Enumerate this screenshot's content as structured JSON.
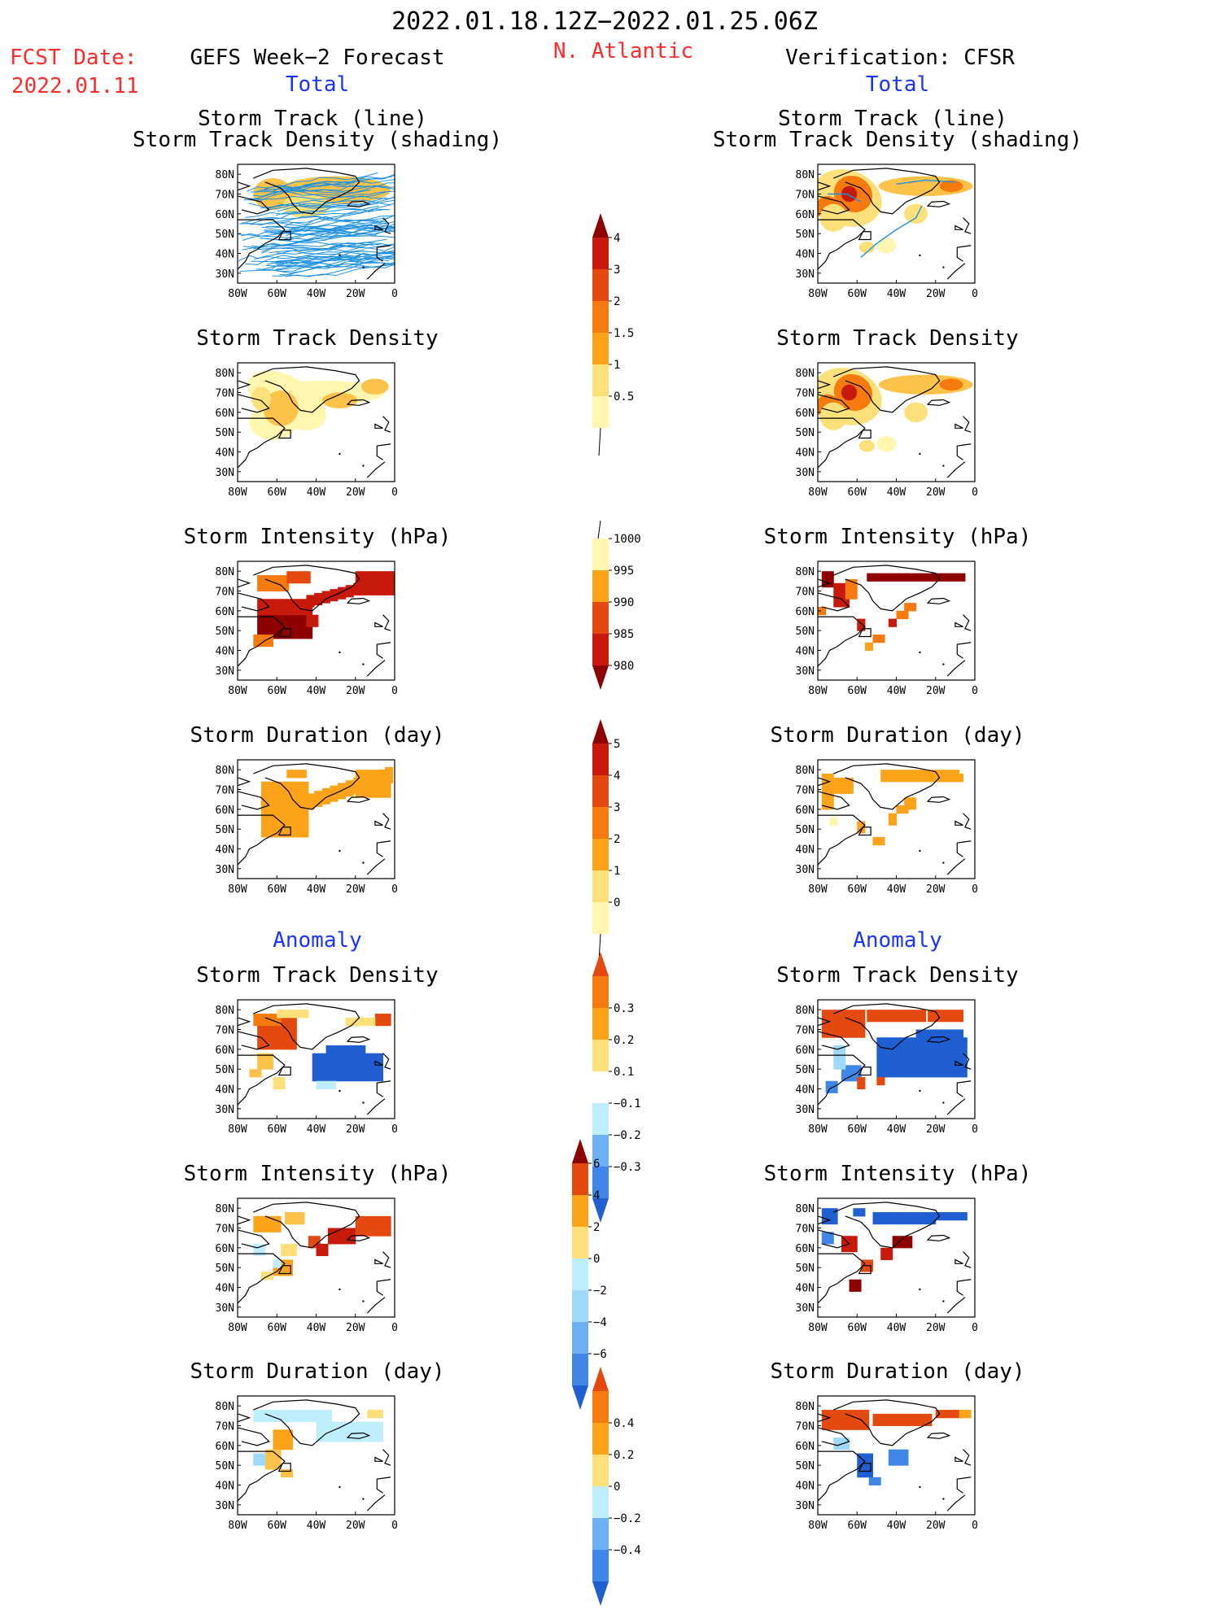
{
  "header": {
    "period": "2022.01.18.12Z−2022.01.25.06Z",
    "fcst_label": "FCST Date:",
    "fcst_date": "2022.01.11",
    "left_model": "GEFS Week−2 Forecast",
    "region": "N. Atlantic",
    "right_model": "Verification: CFSR",
    "total_left": "Total",
    "total_right": "Total",
    "anomaly_left": "Anomaly",
    "anomaly_right": "Anomaly"
  },
  "panels": {
    "track_line": "Storm Track (line)",
    "track_shading": "Storm Track Density (shading)",
    "density": "Storm Track Density",
    "intensity": "Storm Intensity (hPa)",
    "duration": "Storm Duration (day)"
  },
  "axes": {
    "lat_labels": [
      "80N",
      "70N",
      "60N",
      "50N",
      "40N",
      "30N"
    ],
    "lon_labels": [
      "80W",
      "60W",
      "40W",
      "20W",
      "0"
    ]
  },
  "colorbars": {
    "density_total": [
      "4",
      "3",
      "2",
      "1.5",
      "1",
      "0.5"
    ],
    "intensity_total": [
      "1000",
      "995",
      "990",
      "985",
      "980"
    ],
    "duration_total": [
      "5",
      "4",
      "3",
      "2",
      "1",
      "0"
    ],
    "density_anom": [
      "0.3",
      "0.2",
      "0.1",
      "−0.1",
      "−0.2",
      "−0.3"
    ],
    "intensity_anom": [
      "6",
      "4",
      "2",
      "0",
      "−2",
      "−4",
      "−6"
    ],
    "duration_anom": [
      "0.4",
      "0.2",
      "0",
      "−0.2",
      "−0.4"
    ]
  },
  "colors": {
    "title_red": "#ff2a2a",
    "label_blue": "#1a35ff",
    "track_line": "#1e90e0",
    "warm": [
      "#fff7b0",
      "#fde07a",
      "#fdc24a",
      "#fca31a",
      "#f77a0e",
      "#e44a0f",
      "#c8190d",
      "#8e0000"
    ],
    "cool": [
      "#bfefff",
      "#9fd8f8",
      "#6db0f3",
      "#3f86e6",
      "#1f5fd1"
    ]
  }
}
